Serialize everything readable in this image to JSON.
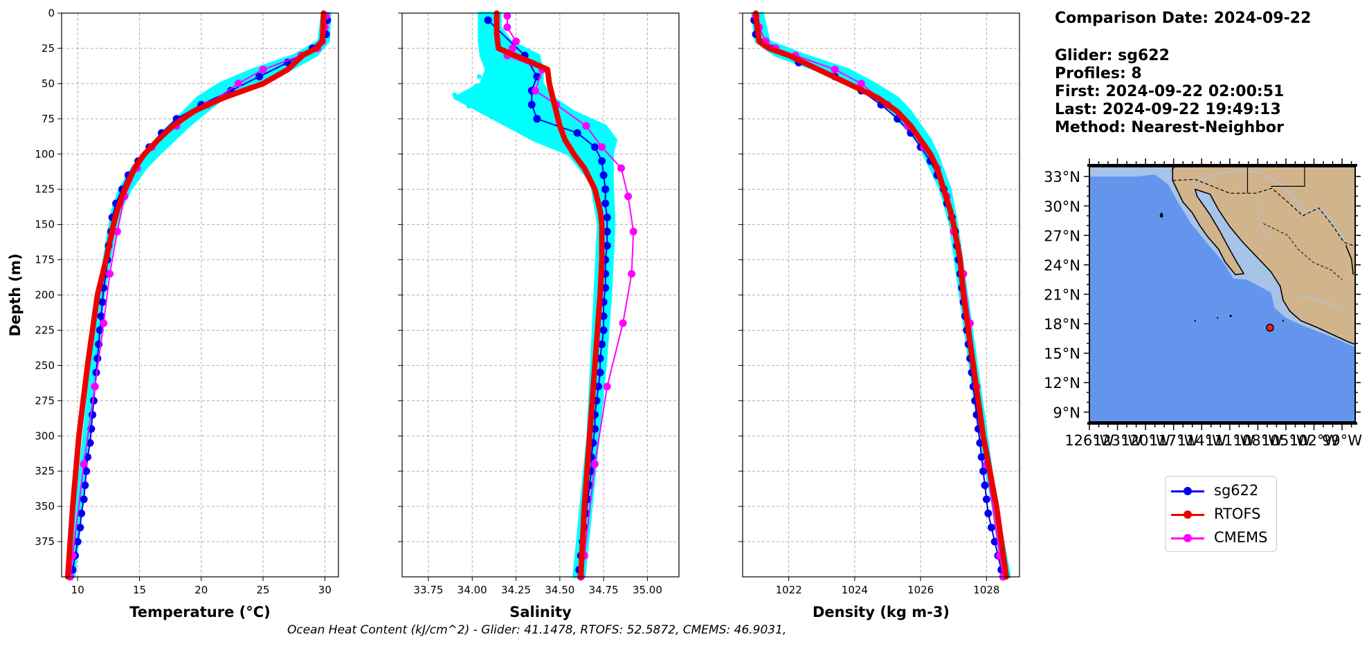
{
  "info": {
    "comparison": "Comparison Date: 2024-09-22",
    "glider": "Glider: sg622",
    "profiles": "Profiles: 8",
    "first": "First: 2024-09-22 02:00:51",
    "last": "Last: 2024-09-22 19:49:13",
    "method": "Method: Nearest-Neighbor"
  },
  "footer": "Ocean Heat Content (kJ/cm^2) - Glider: 41.1478,  RTOFS: 52.5872,  CMEMS: 46.9031,",
  "colors": {
    "glider": "#0000ee",
    "rtofs": "#ee0000",
    "cmems": "#ff00ff",
    "raw": "#00ffff",
    "ocean": "#6495ed",
    "shelf": "#a7c3e8",
    "land": "#d2b48c"
  },
  "legend": [
    {
      "label": "sg622",
      "color": "#0000ee"
    },
    {
      "label": "RTOFS",
      "color": "#ee0000"
    },
    {
      "label": "CMEMS",
      "color": "#ff00ff"
    }
  ],
  "chart_data": [
    {
      "type": "line",
      "xlabel": "Temperature (°C)",
      "ylabel": "Depth (m)",
      "xlim": [
        8.7,
        31.1
      ],
      "ylim": [
        400,
        0
      ],
      "xticks": [
        "10",
        "15",
        "20",
        "25",
        "30"
      ],
      "xtick_values": [
        10,
        15,
        20,
        25,
        30
      ],
      "yticks": [
        "0",
        "25",
        "50",
        "75",
        "100",
        "125",
        "150",
        "175",
        "200",
        "225",
        "250",
        "275",
        "300",
        "325",
        "350",
        "375"
      ],
      "ytick_values": [
        0,
        25,
        50,
        75,
        100,
        125,
        150,
        175,
        200,
        225,
        250,
        275,
        300,
        325,
        350,
        375
      ],
      "grid": true,
      "raw_band": {
        "depth": [
          0,
          20,
          30,
          40,
          50,
          60,
          70,
          80,
          90,
          100,
          110,
          125,
          140,
          160,
          200,
          250,
          300,
          350,
          400
        ],
        "min": [
          29.8,
          29.5,
          27.5,
          24.2,
          21.5,
          19.7,
          18.6,
          17.4,
          16.3,
          15.4,
          14.4,
          13.4,
          12.8,
          12.4,
          11.7,
          11.1,
          10.5,
          9.9,
          9.3
        ],
        "max": [
          30.4,
          30.3,
          29.3,
          27.2,
          24.2,
          21.8,
          20.4,
          19.0,
          17.8,
          16.6,
          15.5,
          14.3,
          13.4,
          12.9,
          12.1,
          11.5,
          10.9,
          10.3,
          9.7
        ]
      },
      "series": [
        {
          "name": "RTOFS",
          "depth": [
            0,
            20,
            25,
            30,
            40,
            50,
            60,
            70,
            80,
            90,
            100,
            110,
            125,
            140,
            150,
            175,
            200,
            250,
            300,
            350,
            400
          ],
          "values": [
            29.9,
            29.8,
            29.3,
            28.2,
            27.0,
            25.0,
            21.8,
            19.3,
            17.7,
            16.5,
            15.4,
            14.6,
            13.8,
            13.2,
            12.9,
            12.3,
            11.6,
            10.8,
            10.1,
            9.6,
            9.2
          ]
        },
        {
          "name": "sg622",
          "depth": [
            5,
            15,
            25,
            35,
            45,
            55,
            65,
            75,
            85,
            95,
            105,
            115,
            125,
            135,
            145,
            155,
            165,
            175,
            185,
            195,
            205,
            215,
            225,
            235,
            245,
            255,
            265,
            275,
            285,
            295,
            305,
            315,
            325,
            335,
            345,
            355,
            365,
            375,
            385,
            395
          ],
          "values": [
            30.2,
            30.1,
            29.0,
            27.0,
            24.7,
            22.4,
            20.0,
            18.0,
            16.8,
            15.8,
            14.9,
            14.1,
            13.6,
            13.1,
            12.8,
            12.7,
            12.5,
            12.4,
            12.3,
            12.1,
            12.0,
            11.9,
            11.8,
            11.7,
            11.6,
            11.5,
            11.4,
            11.3,
            11.2,
            11.1,
            11.0,
            10.8,
            10.7,
            10.6,
            10.5,
            10.3,
            10.2,
            10.0,
            9.8,
            9.6
          ]
        },
        {
          "name": "CMEMS",
          "depth": [
            2,
            10,
            20,
            25,
            30,
            40,
            50,
            65,
            80,
            95,
            110,
            130,
            155,
            185,
            220,
            265,
            320,
            385,
            400
          ],
          "values": [
            30.1,
            30.0,
            29.8,
            29.4,
            28.1,
            25.0,
            23.0,
            20.5,
            18.0,
            16.0,
            14.8,
            13.8,
            13.2,
            12.6,
            12.1,
            11.4,
            10.5,
            9.6,
            9.4
          ]
        }
      ]
    },
    {
      "type": "line",
      "xlabel": "Salinity",
      "ylabel": "",
      "xlim": [
        33.6,
        35.18
      ],
      "ylim": [
        400,
        0
      ],
      "xticks": [
        "33.75",
        "34.00",
        "34.25",
        "34.50",
        "34.75",
        "35.00"
      ],
      "xtick_values": [
        33.75,
        34.0,
        34.25,
        34.5,
        34.75,
        35.0
      ],
      "yticks": [],
      "ytick_values": [
        0,
        25,
        50,
        75,
        100,
        125,
        150,
        175,
        200,
        225,
        250,
        275,
        300,
        325,
        350,
        375
      ],
      "grid": true,
      "raw_band": {
        "depth": [
          0,
          10,
          20,
          30,
          40,
          50,
          60,
          70,
          80,
          90,
          100,
          120,
          150,
          200,
          250,
          300,
          350,
          400
        ],
        "min": [
          34.04,
          34.04,
          34.04,
          34.05,
          34.08,
          34.05,
          33.9,
          34.05,
          34.2,
          34.35,
          34.55,
          34.68,
          34.72,
          34.7,
          34.68,
          34.66,
          34.62,
          34.58
        ],
        "max": [
          34.16,
          34.16,
          34.22,
          34.38,
          34.4,
          34.4,
          34.46,
          34.58,
          34.76,
          34.82,
          34.8,
          34.8,
          34.81,
          34.79,
          34.76,
          34.72,
          34.68,
          34.64
        ]
      },
      "series": [
        {
          "name": "RTOFS",
          "depth": [
            0,
            15,
            25,
            35,
            40,
            50,
            60,
            70,
            80,
            90,
            100,
            110,
            125,
            140,
            150,
            175,
            200,
            250,
            300,
            350,
            400
          ],
          "values": [
            34.14,
            34.14,
            34.15,
            34.34,
            34.43,
            34.44,
            34.46,
            34.48,
            34.5,
            34.53,
            34.58,
            34.64,
            34.7,
            34.73,
            34.74,
            34.74,
            34.73,
            34.7,
            34.67,
            34.64,
            34.62
          ]
        },
        {
          "name": "sg622",
          "depth": [
            5,
            30,
            45,
            55,
            65,
            75,
            85,
            95,
            105,
            115,
            125,
            135,
            145,
            155,
            165,
            175,
            185,
            195,
            205,
            215,
            225,
            235,
            245,
            255,
            265,
            275,
            285,
            295,
            305,
            315,
            325,
            335,
            345,
            355,
            365,
            375,
            385,
            395
          ],
          "values": [
            34.09,
            34.3,
            34.37,
            34.34,
            34.34,
            34.37,
            34.6,
            34.7,
            34.74,
            34.75,
            34.76,
            34.76,
            34.77,
            34.77,
            34.77,
            34.76,
            34.76,
            34.76,
            34.75,
            34.75,
            34.75,
            34.74,
            34.73,
            34.73,
            34.72,
            34.71,
            34.7,
            34.7,
            34.69,
            34.68,
            34.68,
            34.67,
            34.66,
            34.65,
            34.64,
            34.63,
            34.62,
            34.61
          ]
        },
        {
          "name": "CMEMS",
          "depth": [
            2,
            10,
            20,
            25,
            30,
            40,
            55,
            65,
            80,
            95,
            110,
            130,
            155,
            185,
            220,
            265,
            320,
            385,
            400
          ],
          "values": [
            34.2,
            34.2,
            34.25,
            34.23,
            34.2,
            34.4,
            34.36,
            34.48,
            34.65,
            34.74,
            34.85,
            34.89,
            34.92,
            34.91,
            34.86,
            34.77,
            34.7,
            34.64,
            34.62
          ]
        }
      ]
    },
    {
      "type": "line",
      "xlabel": "Density (kg m-3)",
      "ylabel": "",
      "xlim": [
        1020.6,
        1029.0
      ],
      "ylim": [
        400,
        0
      ],
      "xticks": [
        "1022",
        "1024",
        "1026",
        "1028"
      ],
      "xtick_values": [
        1022,
        1024,
        1026,
        1028
      ],
      "yticks": [],
      "ytick_values": [
        0,
        25,
        50,
        75,
        100,
        125,
        150,
        175,
        200,
        225,
        250,
        275,
        300,
        325,
        350,
        375
      ],
      "grid": true,
      "raw_band": {
        "depth": [
          0,
          20,
          30,
          40,
          50,
          60,
          70,
          80,
          90,
          100,
          125,
          150,
          200,
          250,
          300,
          350,
          400
        ],
        "min": [
          1020.9,
          1021.0,
          1021.6,
          1022.8,
          1023.8,
          1024.6,
          1025.1,
          1025.5,
          1025.9,
          1026.1,
          1026.6,
          1026.9,
          1027.2,
          1027.5,
          1027.8,
          1028.2,
          1028.5
        ],
        "max": [
          1021.2,
          1021.4,
          1022.5,
          1023.8,
          1024.6,
          1025.3,
          1025.7,
          1026.0,
          1026.3,
          1026.5,
          1026.9,
          1027.1,
          1027.4,
          1027.7,
          1028.0,
          1028.3,
          1028.7
        ]
      },
      "series": [
        {
          "name": "RTOFS",
          "depth": [
            0,
            20,
            25,
            30,
            40,
            50,
            60,
            70,
            80,
            90,
            100,
            110,
            125,
            140,
            150,
            175,
            200,
            250,
            300,
            350,
            400
          ],
          "values": [
            1021.0,
            1021.1,
            1021.4,
            1022.0,
            1022.9,
            1023.8,
            1024.7,
            1025.3,
            1025.7,
            1026.0,
            1026.3,
            1026.5,
            1026.7,
            1026.9,
            1027.0,
            1027.2,
            1027.3,
            1027.6,
            1027.9,
            1028.3,
            1028.6
          ]
        },
        {
          "name": "sg622",
          "depth": [
            5,
            15,
            25,
            35,
            45,
            55,
            65,
            75,
            85,
            95,
            105,
            115,
            125,
            135,
            145,
            155,
            165,
            175,
            185,
            195,
            205,
            215,
            225,
            235,
            245,
            255,
            265,
            275,
            285,
            295,
            305,
            315,
            325,
            335,
            345,
            355,
            365,
            375,
            385,
            395
          ],
          "values": [
            1020.95,
            1021.0,
            1021.5,
            1022.3,
            1023.4,
            1024.2,
            1024.8,
            1025.3,
            1025.7,
            1026.0,
            1026.3,
            1026.5,
            1026.7,
            1026.8,
            1026.95,
            1027.05,
            1027.1,
            1027.15,
            1027.2,
            1027.25,
            1027.3,
            1027.35,
            1027.4,
            1027.45,
            1027.5,
            1027.55,
            1027.6,
            1027.65,
            1027.7,
            1027.75,
            1027.8,
            1027.85,
            1027.9,
            1027.95,
            1028.0,
            1028.05,
            1028.15,
            1028.25,
            1028.35,
            1028.45
          ]
        },
        {
          "name": "CMEMS",
          "depth": [
            2,
            10,
            20,
            25,
            30,
            40,
            50,
            65,
            80,
            95,
            110,
            130,
            155,
            185,
            220,
            265,
            320,
            385,
            400
          ],
          "values": [
            1021.0,
            1021.1,
            1021.3,
            1021.6,
            1022.2,
            1023.4,
            1024.2,
            1025.0,
            1025.6,
            1026.1,
            1026.5,
            1026.8,
            1027.0,
            1027.3,
            1027.5,
            1027.7,
            1028.0,
            1028.4,
            1028.5
          ]
        }
      ]
    }
  ],
  "map": {
    "lat_labels": [
      "33°N",
      "30°N",
      "27°N",
      "24°N",
      "21°N",
      "18°N",
      "15°N",
      "12°N",
      "9°N"
    ],
    "lat_values": [
      33,
      30,
      27,
      24,
      21,
      18,
      15,
      12,
      9
    ],
    "lon_labels": [
      "126°W",
      "123°W",
      "120°W",
      "117°W",
      "114°W",
      "111°W",
      "108°W",
      "105°W",
      "102°W",
      "99°W"
    ],
    "lon_values": [
      -126,
      -123,
      -120,
      -117,
      -114,
      -111,
      -108,
      -105,
      -102,
      -99
    ],
    "lon_range": [
      -126,
      -97.6
    ],
    "lat_range": [
      8,
      34
    ],
    "glider_lon": -106.7,
    "glider_lat": 17.6
  }
}
